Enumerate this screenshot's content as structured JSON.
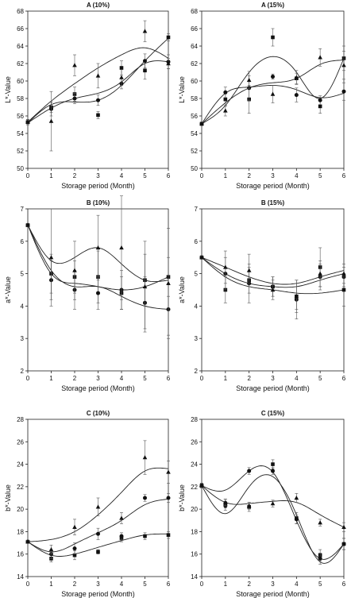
{
  "chart_data": [
    {
      "type": "scatter",
      "title": "A (10%)",
      "xlabel": "Storage period (Month)",
      "ylabel": "L*-Value",
      "xlim": [
        0,
        6
      ],
      "ylim": [
        50,
        68
      ],
      "xticks": [
        0,
        1,
        2,
        3,
        4,
        5,
        6
      ],
      "yticks": [
        50,
        52,
        54,
        56,
        58,
        60,
        62,
        64,
        66,
        68
      ],
      "grid": false,
      "series": [
        {
          "marker": "square",
          "x": [
            0,
            1,
            2,
            3,
            4,
            5,
            6
          ],
          "y": [
            55.3,
            57.0,
            58.5,
            56.1,
            61.5,
            61.2,
            65.0
          ],
          "err": [
            0.3,
            0.6,
            0.8,
            0.4,
            0.8,
            1.0,
            0.4
          ],
          "fit": [
            55.2,
            57.3,
            57.6,
            57.8,
            59.5,
            62.3,
            64.9
          ]
        },
        {
          "marker": "circle",
          "x": [
            0,
            1,
            2,
            3,
            4,
            5,
            6
          ],
          "y": [
            55.3,
            56.8,
            58.0,
            57.8,
            59.7,
            62.3,
            62.2
          ],
          "err": [
            0.3,
            0.8,
            0.6,
            0.6,
            0.6,
            0.8,
            0.8
          ],
          "fit": [
            55.2,
            56.9,
            58.0,
            58.6,
            59.9,
            62.0,
            62.2
          ]
        },
        {
          "marker": "triangle",
          "x": [
            0,
            1,
            2,
            3,
            4,
            5,
            6
          ],
          "y": [
            55.3,
            55.4,
            61.8,
            60.6,
            60.4,
            65.7,
            62.0
          ],
          "err": [
            0.3,
            3.4,
            1.2,
            1.4,
            0.9,
            1.2,
            0.6
          ],
          "fit": [
            55.3,
            57.7,
            59.7,
            61.5,
            63.0,
            63.8,
            62.6
          ]
        }
      ]
    },
    {
      "type": "scatter",
      "title": "A (15%)",
      "xlabel": "Storage period (Month)",
      "ylabel": "L*-Value",
      "xlim": [
        0,
        6
      ],
      "ylim": [
        50,
        68
      ],
      "xticks": [
        0,
        1,
        2,
        3,
        4,
        5,
        6
      ],
      "yticks": [
        50,
        52,
        54,
        56,
        58,
        60,
        62,
        64,
        66,
        68
      ],
      "grid": false,
      "series": [
        {
          "marker": "square",
          "x": [
            0,
            1,
            2,
            3,
            4,
            5,
            6
          ],
          "y": [
            55.1,
            57.9,
            57.9,
            65.0,
            60.3,
            57.1,
            62.6
          ],
          "err": [
            0.2,
            0.8,
            1.6,
            1.0,
            0.6,
            0.8,
            1.4
          ],
          "fit": [
            55.1,
            57.2,
            61.0,
            62.8,
            61.0,
            58.0,
            62.6
          ]
        },
        {
          "marker": "circle",
          "x": [
            0,
            1,
            2,
            3,
            4,
            5,
            6
          ],
          "y": [
            55.1,
            58.7,
            59.2,
            60.5,
            58.4,
            57.8,
            58.8
          ],
          "err": [
            0.2,
            0.6,
            1.4,
            0.3,
            0.8,
            0.5,
            1.0
          ],
          "fit": [
            55.1,
            58.6,
            59.3,
            59.5,
            59.0,
            58.1,
            58.6
          ]
        },
        {
          "marker": "triangle",
          "x": [
            0,
            1,
            2,
            3,
            4,
            5,
            6
          ],
          "y": [
            55.1,
            56.6,
            60.1,
            58.5,
            60.4,
            62.7,
            61.8
          ],
          "err": [
            0.2,
            0.6,
            1.0,
            1.0,
            0.8,
            1.0,
            1.6
          ],
          "fit": [
            55.1,
            57.5,
            59.2,
            59.8,
            60.3,
            61.9,
            62.4
          ]
        }
      ]
    },
    {
      "type": "scatter",
      "title": "B (10%)",
      "xlabel": "Storage period (Month)",
      "ylabel": "a*-Value",
      "xlim": [
        0,
        6
      ],
      "ylim": [
        2,
        7
      ],
      "xticks": [
        0,
        1,
        2,
        3,
        4,
        5,
        6
      ],
      "yticks": [
        2,
        3,
        4,
        5,
        6,
        7
      ],
      "grid": false,
      "series": [
        {
          "marker": "square",
          "x": [
            0,
            1,
            2,
            3,
            4,
            5,
            6
          ],
          "y": [
            6.5,
            5.0,
            4.9,
            4.9,
            4.4,
            4.8,
            4.9
          ],
          "err": [
            0.05,
            0.6,
            0.5,
            0.8,
            0.5,
            0.8,
            0.6
          ],
          "fit": [
            6.5,
            5.0,
            4.7,
            4.6,
            4.5,
            4.6,
            4.9
          ]
        },
        {
          "marker": "circle",
          "x": [
            0,
            1,
            2,
            3,
            4,
            5,
            6
          ],
          "y": [
            6.5,
            4.8,
            4.5,
            4.4,
            4.5,
            4.1,
            3.9
          ],
          "err": [
            0.05,
            0.6,
            0.6,
            0.5,
            0.6,
            0.8,
            0.8
          ],
          "fit": [
            6.5,
            5.1,
            4.6,
            4.6,
            4.3,
            4.0,
            3.9
          ]
        },
        {
          "marker": "triangle",
          "x": [
            0,
            1,
            2,
            3,
            4,
            5,
            6
          ],
          "y": [
            6.5,
            5.5,
            5.1,
            5.8,
            5.8,
            4.6,
            4.7
          ],
          "err": [
            0.05,
            1.5,
            0.9,
            1.0,
            1.6,
            1.4,
            1.7
          ],
          "fit": [
            6.5,
            5.4,
            5.5,
            5.8,
            5.3,
            4.8,
            4.8
          ]
        }
      ]
    },
    {
      "type": "scatter",
      "title": "B (15%)",
      "xlabel": "Storage period (Month)",
      "ylabel": "a*-Value",
      "xlim": [
        0,
        6
      ],
      "ylim": [
        2,
        7
      ],
      "xticks": [
        0,
        1,
        2,
        3,
        4,
        5,
        6
      ],
      "yticks": [
        2,
        3,
        4,
        5,
        6,
        7
      ],
      "grid": false,
      "series": [
        {
          "marker": "square",
          "x": [
            0,
            1,
            2,
            3,
            4,
            5,
            6
          ],
          "y": [
            5.5,
            4.5,
            4.8,
            4.6,
            4.3,
            5.2,
            4.5
          ],
          "err": [
            0.05,
            0.4,
            0.4,
            0.3,
            0.5,
            0.6,
            0.5
          ],
          "fit": [
            5.5,
            4.9,
            4.6,
            4.5,
            4.4,
            4.4,
            4.5
          ]
        },
        {
          "marker": "circle",
          "x": [
            0,
            1,
            2,
            3,
            4,
            5,
            6
          ],
          "y": [
            5.5,
            5.0,
            4.7,
            4.6,
            4.2,
            4.9,
            4.9
          ],
          "err": [
            0.05,
            0.5,
            0.6,
            0.3,
            0.6,
            0.4,
            0.3
          ],
          "fit": [
            5.5,
            5.0,
            4.7,
            4.6,
            4.6,
            4.8,
            5.0
          ]
        },
        {
          "marker": "triangle",
          "x": [
            0,
            1,
            2,
            3,
            4,
            5,
            6
          ],
          "y": [
            5.5,
            5.2,
            5.1,
            4.5,
            4.3,
            5.0,
            5.0
          ],
          "err": [
            0.05,
            0.5,
            0.5,
            0.3,
            0.4,
            0.4,
            0.3
          ],
          "fit": [
            5.5,
            5.2,
            4.9,
            4.7,
            4.7,
            4.9,
            5.1
          ]
        }
      ]
    },
    {
      "type": "scatter",
      "title": "C (10%)",
      "xlabel": "Storage period (Month)",
      "ylabel": "b*-Value",
      "xlim": [
        0,
        6
      ],
      "ylim": [
        14,
        28
      ],
      "xticks": [
        0,
        1,
        2,
        3,
        4,
        5,
        6
      ],
      "yticks": [
        14,
        16,
        18,
        20,
        22,
        24,
        26,
        28
      ],
      "grid": false,
      "series": [
        {
          "marker": "square",
          "x": [
            0,
            1,
            2,
            3,
            4,
            5,
            6
          ],
          "y": [
            17.1,
            15.6,
            15.9,
            16.2,
            17.4,
            17.6,
            17.7
          ],
          "err": [
            0.1,
            0.3,
            0.4,
            0.2,
            0.3,
            0.3,
            0.3
          ],
          "fit": [
            17.1,
            15.9,
            16.0,
            16.6,
            17.2,
            17.7,
            17.8
          ]
        },
        {
          "marker": "circle",
          "x": [
            0,
            1,
            2,
            3,
            4,
            5,
            6
          ],
          "y": [
            17.1,
            16.0,
            16.5,
            17.8,
            17.6,
            21.0,
            21.0
          ],
          "err": [
            0.1,
            0.4,
            0.5,
            0.5,
            0.3,
            0.3,
            0.4
          ],
          "fit": [
            17.1,
            16.2,
            16.9,
            17.9,
            19.0,
            20.4,
            20.9
          ]
        },
        {
          "marker": "triangle",
          "x": [
            0,
            1,
            2,
            3,
            4,
            5,
            6
          ],
          "y": [
            17.1,
            16.4,
            18.4,
            20.2,
            19.2,
            24.6,
            23.3
          ],
          "err": [
            0.1,
            0.4,
            0.7,
            0.8,
            0.5,
            1.5,
            1.0
          ],
          "fit": [
            17.1,
            17.3,
            18.0,
            19.5,
            21.5,
            23.4,
            23.6
          ]
        }
      ]
    },
    {
      "type": "scatter",
      "title": "C (15%)",
      "xlabel": "Storage period (Month)",
      "ylabel": "b*-Value",
      "xlim": [
        0,
        6
      ],
      "ylim": [
        14,
        28
      ],
      "xticks": [
        0,
        1,
        2,
        3,
        4,
        5,
        6
      ],
      "yticks": [
        14,
        16,
        18,
        20,
        22,
        24,
        26,
        28
      ],
      "grid": false,
      "series": [
        {
          "marker": "square",
          "x": [
            0,
            1,
            2,
            3,
            4,
            5,
            6
          ],
          "y": [
            22.1,
            20.5,
            20.2,
            24.0,
            19.2,
            15.9,
            16.9
          ],
          "err": [
            0.2,
            0.4,
            0.4,
            0.4,
            0.5,
            0.5,
            0.5
          ],
          "fit": [
            22.1,
            19.6,
            22.0,
            22.9,
            19.5,
            15.3,
            16.9
          ]
        },
        {
          "marker": "circle",
          "x": [
            0,
            1,
            2,
            3,
            4,
            5,
            6
          ],
          "y": [
            22.1,
            20.3,
            23.4,
            23.4,
            19.1,
            15.6,
            16.9
          ],
          "err": [
            0.2,
            0.4,
            0.3,
            0.3,
            0.4,
            0.5,
            0.5
          ],
          "fit": [
            22.1,
            21.7,
            23.4,
            23.3,
            19.0,
            15.6,
            16.9
          ]
        },
        {
          "marker": "triangle",
          "x": [
            0,
            1,
            2,
            3,
            4,
            5,
            6
          ],
          "y": [
            22.1,
            20.6,
            20.3,
            20.5,
            21.0,
            18.8,
            18.4
          ],
          "err": [
            0.2,
            0.3,
            0.3,
            0.3,
            0.4,
            0.3,
            0.4
          ],
          "fit": [
            22.1,
            20.6,
            20.5,
            20.7,
            20.6,
            19.5,
            18.4
          ]
        }
      ]
    }
  ]
}
